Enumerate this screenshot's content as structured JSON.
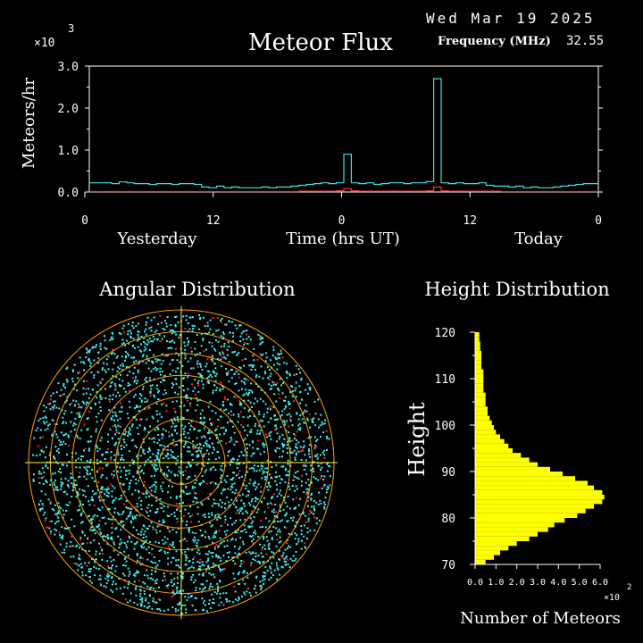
{
  "header": {
    "date": "Wed Mar 19 2025",
    "frequency_label": "Frequency (MHz)",
    "frequency_value": "32.55",
    "multiplier_base": "×10",
    "multiplier_exp": "3"
  },
  "colors": {
    "flux_line": "#40e0e0",
    "flux_low_line": "#ff3030",
    "axes": "#ffffff",
    "polar_rings": "#ffa000",
    "polar_cross": "#ffff40",
    "height_bars": "#ffff00",
    "dots_cyan": "#40f0f0",
    "dots_red": "#ff2020"
  },
  "chart_data": [
    {
      "type": "line",
      "title": "Meteor Flux",
      "ylabel": "Meteors/hr",
      "xlabel": "Time (hrs UT)",
      "ylim": [
        0,
        3.0
      ],
      "y_ticks": [
        "0.0",
        "1.0",
        "2.0",
        "3.0"
      ],
      "x_ticks": [
        "0",
        "12",
        "0",
        "12",
        "0"
      ],
      "day_labels": [
        "Yesterday",
        "Today"
      ],
      "y_unit_multiplier": "×10^3",
      "series": [
        {
          "values": [
            0.22,
            0.22,
            0.22,
            0.2,
            0.24,
            0.22,
            0.2,
            0.2,
            0.18,
            0.2,
            0.2,
            0.18,
            0.2,
            0.2,
            0.18,
            0.12,
            0.1,
            0.14,
            0.1,
            0.12,
            0.1,
            0.1,
            0.1,
            0.12,
            0.1,
            0.12,
            0.12,
            0.14,
            0.16,
            0.18,
            0.2,
            0.22,
            0.2,
            0.22,
            0.9,
            0.22,
            0.2,
            0.22,
            0.18,
            0.2,
            0.22,
            0.22,
            0.2,
            0.22,
            0.22,
            0.25,
            2.7,
            0.22,
            0.2,
            0.22,
            0.2,
            0.2,
            0.22,
            0.16,
            0.14,
            0.14,
            0.12,
            0.14,
            0.1,
            0.12,
            0.1,
            0.1,
            0.12,
            0.14,
            0.16,
            0.18,
            0.2,
            0.2
          ]
        },
        {
          "values": [
            0.01,
            0.01,
            0.01,
            0.01,
            0.01,
            0.01,
            0.01,
            0.01,
            0.01,
            0.01,
            0.01,
            0.01,
            0.01,
            0.01,
            0.01,
            0.01,
            0.01,
            0.01,
            0.01,
            0.01,
            0.01,
            0.01,
            0.01,
            0.01,
            0.01,
            0.01,
            0.01,
            0.01,
            0.02,
            0.02,
            0.02,
            0.02,
            0.02,
            0.03,
            0.08,
            0.03,
            0.02,
            0.02,
            0.02,
            0.02,
            0.02,
            0.02,
            0.02,
            0.02,
            0.02,
            0.03,
            0.12,
            0.03,
            0.02,
            0.02,
            0.02,
            0.02,
            0.02,
            0.02,
            0.02,
            0.01,
            0.01,
            0.01,
            0.01,
            0.01,
            0.01,
            0.01,
            0.01,
            0.01,
            0.01,
            0.01,
            0.01,
            0.01
          ]
        }
      ]
    },
    {
      "type": "scatter",
      "title": "Angular Distribution",
      "rings": 7
    },
    {
      "type": "bar",
      "title": "Height Distribution",
      "ylabel": "Height",
      "xlabel": "Number of Meteors",
      "orientation": "horizontal",
      "y_ticks": [
        "70",
        "80",
        "90",
        "100",
        "110",
        "120"
      ],
      "x_ticks": [
        "0.0",
        "1.0",
        "2.0",
        "3.0",
        "4.0",
        "5.0",
        "6.0"
      ],
      "xlim": [
        0,
        6.0
      ],
      "ylim": [
        70,
        120
      ],
      "x_unit_multiplier": "×10^2",
      "multiplier_base": "×10",
      "multiplier_exp": "2",
      "heights": [
        71,
        72,
        73,
        74,
        75,
        76,
        77,
        78,
        79,
        80,
        81,
        82,
        83,
        84,
        85,
        86,
        87,
        88,
        89,
        90,
        91,
        92,
        93,
        94,
        95,
        96,
        97,
        98,
        99,
        100,
        101,
        102,
        103,
        104,
        105,
        106,
        107,
        108,
        109,
        110,
        111,
        112,
        113,
        114,
        115,
        116,
        117,
        118,
        119,
        120
      ],
      "counts": [
        0.5,
        0.9,
        1.2,
        1.6,
        2.0,
        2.6,
        3.0,
        3.5,
        3.8,
        4.3,
        4.9,
        5.3,
        5.7,
        6.1,
        6.2,
        6.1,
        5.7,
        5.4,
        4.8,
        4.2,
        3.6,
        3.0,
        2.6,
        2.2,
        1.8,
        1.6,
        1.4,
        1.2,
        1.0,
        0.9,
        0.8,
        0.7,
        0.6,
        0.6,
        0.5,
        0.5,
        0.5,
        0.4,
        0.4,
        0.4,
        0.4,
        0.4,
        0.3,
        0.3,
        0.3,
        0.3,
        0.25,
        0.25,
        0.2,
        0.2
      ]
    }
  ]
}
